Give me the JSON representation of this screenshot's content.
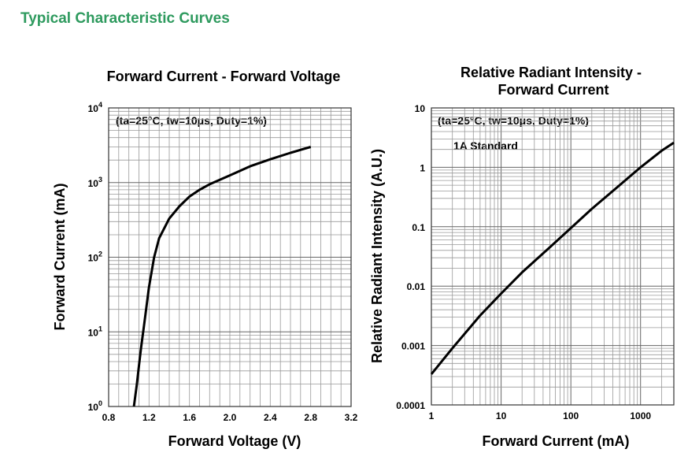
{
  "page_title": "Typical Characteristic Curves",
  "colors": {
    "title": "#2e9a5e",
    "curve": "#000000",
    "grid": "#999999"
  },
  "chart_data": [
    {
      "type": "line",
      "title": "Forward Current - Forward Voltage",
      "annotation": "(ta=25°C, tw=10μs, Duty=1%)",
      "xlabel": "Forward Voltage (V)",
      "ylabel": "Forward Current (mA)",
      "xlim": [
        0.8,
        3.2
      ],
      "ylim": [
        1,
        10000
      ],
      "y_scale": "log",
      "x_ticks": [
        "0.8",
        "1.2",
        "1.6",
        "2.0",
        "2.4",
        "2.8",
        "3.2"
      ],
      "y_ticks": [
        {
          "base": "10",
          "exp": "0"
        },
        {
          "base": "10",
          "exp": "1"
        },
        {
          "base": "10",
          "exp": "2"
        },
        {
          "base": "10",
          "exp": "3"
        },
        {
          "base": "10",
          "exp": "4"
        }
      ],
      "grid": true,
      "series": [
        {
          "x": [
            1.05,
            1.08,
            1.1,
            1.12,
            1.15,
            1.2,
            1.25,
            1.3,
            1.4,
            1.5,
            1.6,
            1.7,
            1.8,
            2.0,
            2.2,
            2.4,
            2.6,
            2.8
          ],
          "y": [
            1,
            2,
            3.5,
            6,
            12,
            40,
            100,
            180,
            330,
            480,
            650,
            800,
            950,
            1250,
            1650,
            2050,
            2500,
            3000
          ]
        }
      ]
    },
    {
      "type": "line",
      "title_lines": [
        "Relative Radiant Intensity -",
        "Forward Current"
      ],
      "annotation": "(ta=25°C, tw=10μs, Duty=1%)",
      "annotation2": "1A Standard",
      "xlabel": "Forward Current (mA)",
      "ylabel": "Relative Radiant Intensity (A.U.)",
      "xlim": [
        1,
        3000
      ],
      "ylim": [
        0.0001,
        10
      ],
      "x_scale": "log",
      "y_scale": "log",
      "x_ticks": [
        "1",
        "10",
        "100",
        "1000"
      ],
      "y_ticks": [
        "0.0001",
        "0.001",
        "0.01",
        "0.1",
        "1",
        "10"
      ],
      "grid": true,
      "series": [
        {
          "x": [
            1,
            2,
            5,
            10,
            20,
            50,
            100,
            200,
            500,
            1000,
            2000,
            3000
          ],
          "y": [
            0.00033,
            0.0009,
            0.0032,
            0.0075,
            0.017,
            0.045,
            0.095,
            0.2,
            0.5,
            1.0,
            1.9,
            2.6
          ]
        }
      ]
    }
  ]
}
